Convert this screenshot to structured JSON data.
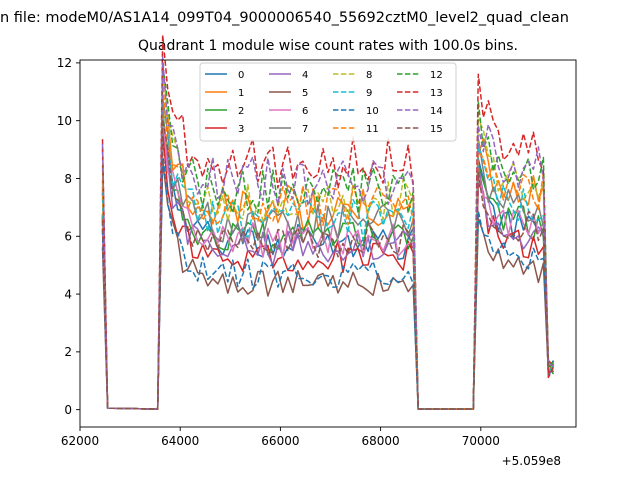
{
  "chart_data": {
    "type": "line",
    "suptitle": "n file: modeM0/AS1A14_099T04_9000006540_55692cztM0_level2_quad_clean",
    "title": "Quadrant 1 module wise count rates with 100.0s bins.",
    "xlabel": "",
    "ylabel": "",
    "x_offset_label": "+5.059e8",
    "xlim": [
      62000,
      71900
    ],
    "ylim": [
      -0.6,
      12.1
    ],
    "xticks": [
      62000,
      64000,
      66000,
      68000,
      70000
    ],
    "xtick_labels": [
      "62000",
      "64000",
      "66000",
      "68000",
      "70000"
    ],
    "yticks": [
      0,
      2,
      4,
      6,
      8,
      10,
      12
    ],
    "ytick_labels": [
      "0",
      "2",
      "4",
      "6",
      "8",
      "10",
      "12"
    ],
    "grid": false,
    "legend_position": "top-center",
    "legend_columns": 4,
    "x_segments": [
      [
        62450,
        62650,
        100
      ],
      [
        63550,
        63650,
        100
      ],
      [
        63750,
        68650,
        100
      ],
      [
        68750,
        69850,
        100
      ],
      [
        69950,
        71450,
        100
      ]
    ],
    "series": [
      {
        "name": "0",
        "color": "#1f77b4",
        "dash": "solid",
        "mean": 5.8,
        "seed": 1
      },
      {
        "name": "1",
        "color": "#ff7f0e",
        "dash": "solid",
        "mean": 7.0,
        "seed": 2
      },
      {
        "name": "2",
        "color": "#2ca02c",
        "dash": "solid",
        "mean": 6.0,
        "seed": 3
      },
      {
        "name": "3",
        "color": "#d62728",
        "dash": "solid",
        "mean": 5.3,
        "seed": 4
      },
      {
        "name": "4",
        "color": "#9467bd",
        "dash": "solid",
        "mean": 5.6,
        "seed": 5
      },
      {
        "name": "5",
        "color": "#8c564b",
        "dash": "solid",
        "mean": 4.4,
        "seed": 6
      },
      {
        "name": "6",
        "color": "#e377c2",
        "dash": "solid",
        "mean": 5.9,
        "seed": 7
      },
      {
        "name": "7",
        "color": "#7f7f7f",
        "dash": "solid",
        "mean": 6.4,
        "seed": 8
      },
      {
        "name": "8",
        "color": "#bcbd22",
        "dash": "dashed",
        "mean": 7.3,
        "seed": 9
      },
      {
        "name": "9",
        "color": "#17becf",
        "dash": "dashed",
        "mean": 6.6,
        "seed": 10
      },
      {
        "name": "10",
        "color": "#1f77b4",
        "dash": "dashed",
        "mean": 4.7,
        "seed": 11
      },
      {
        "name": "11",
        "color": "#ff7f0e",
        "dash": "dashed",
        "mean": 7.1,
        "seed": 12
      },
      {
        "name": "12",
        "color": "#2ca02c",
        "dash": "dashed",
        "mean": 7.6,
        "seed": 13
      },
      {
        "name": "13",
        "color": "#d62728",
        "dash": "dashed",
        "mean": 8.6,
        "seed": 14
      },
      {
        "name": "14",
        "color": "#9467bd",
        "dash": "dashed",
        "mean": 7.9,
        "seed": 15
      },
      {
        "name": "15",
        "color": "#8c564b",
        "dash": "dashed",
        "mean": 5.9,
        "seed": 16
      }
    ]
  }
}
